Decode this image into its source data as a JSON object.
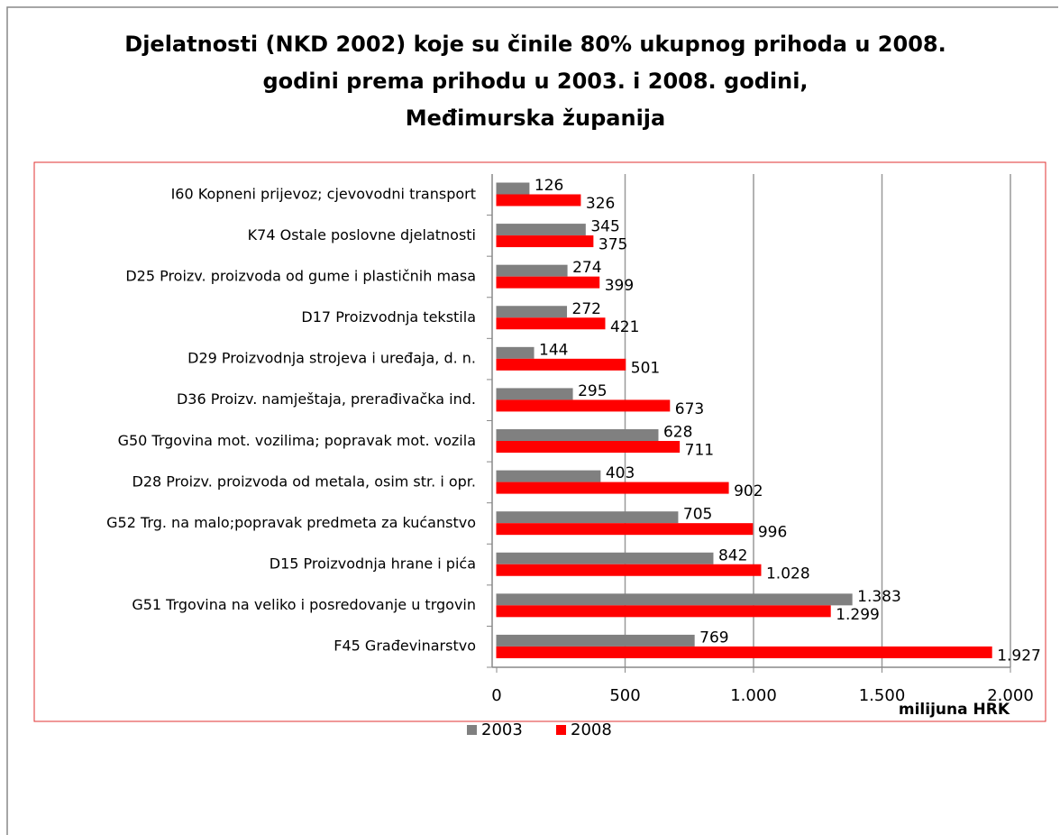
{
  "chart_data": {
    "type": "bar",
    "orientation": "horizontal",
    "title": [
      "Djelatnosti (NKD 2002) koje su činile 80% ukupnog  prihoda u 2008.",
      "godini prema prihodu u 2003. i 2008. godini,",
      "Međimurska županija"
    ],
    "x_label": "milijuna HRK",
    "categories": [
      "I60 Kopneni prijevoz; cjevovodni transport",
      "K74 Ostale poslovne djelatnosti",
      "D25 Proizv. proizvoda od gume i plastičnih masa",
      "D17 Proizvodnja tekstila",
      "D29 Proizvodnja strojeva i uređaja, d. n.",
      "D36 Proizv. namještaja, prerađivačka ind.",
      "G50 Trgovina mot. vozilima; popravak mot. vozila",
      "D28 Proizv. proizvoda od metala, osim str. i opr.",
      "G52 Trg. na malo;popravak predmeta za kućanstvo",
      "D15 Proizvodnja hrane i pića",
      "G51 Trgovina na veliko i posredovanje u trgovin",
      "F45 Građevinarstvo"
    ],
    "series": [
      {
        "name": "2003",
        "color": "#808080",
        "values": [
          126,
          345,
          274,
          272,
          144,
          295,
          628,
          403,
          705,
          842,
          1383,
          769
        ],
        "value_labels": [
          "126",
          "345",
          "274",
          "272",
          "144",
          "295",
          "628",
          "403",
          "705",
          "842",
          "1.383",
          "769"
        ]
      },
      {
        "name": "2008",
        "color": "#ff0000",
        "values": [
          326,
          375,
          399,
          421,
          501,
          673,
          711,
          902,
          996,
          1028,
          1299,
          1927
        ],
        "value_labels": [
          "326",
          "375",
          "399",
          "421",
          "501",
          "673",
          "711",
          "902",
          "996",
          "1.028",
          "1.299",
          "1.927"
        ]
      }
    ],
    "xlim": [
      0,
      2000
    ],
    "xticks": [
      0,
      500,
      {
        "value": 1000,
        "label": "1.000"
      },
      {
        "value": 1500,
        "label": "1.500"
      },
      {
        "value": 2000,
        "label": "2.000"
      }
    ],
    "grid": true,
    "legend": "bottom"
  }
}
